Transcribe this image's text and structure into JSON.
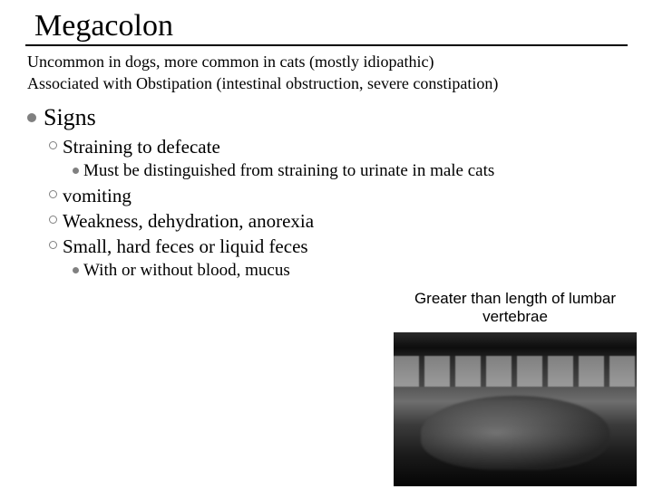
{
  "title": "Megacolon",
  "intro_line1": "Uncommon in dogs, more common in cats (mostly idiopathic)",
  "intro_line2": "Associated with Obstipation (intestinal obstruction, severe constipation)",
  "signs": {
    "heading": "Signs",
    "items": [
      {
        "text": "Straining to defecate",
        "sub": [
          "Must be distinguished from straining to urinate in male cats"
        ]
      },
      {
        "text": "vomiting",
        "sub": []
      },
      {
        "text": "Weakness, dehydration, anorexia",
        "sub": []
      },
      {
        "text": "Small, hard feces or liquid feces",
        "sub": [
          "With or without blood, mucus"
        ]
      }
    ]
  },
  "image_caption": "Greater than length of lumbar vertebrae",
  "colors": {
    "text": "#000000",
    "bullet": "#808080",
    "background": "#ffffff"
  },
  "typography": {
    "title_size_pt": 26,
    "body_size_pt": 14,
    "l1_size_pt": 20,
    "l2_size_pt": 16,
    "l3_size_pt": 14.5,
    "caption_family": "Arial",
    "body_family": "Times New Roman"
  }
}
